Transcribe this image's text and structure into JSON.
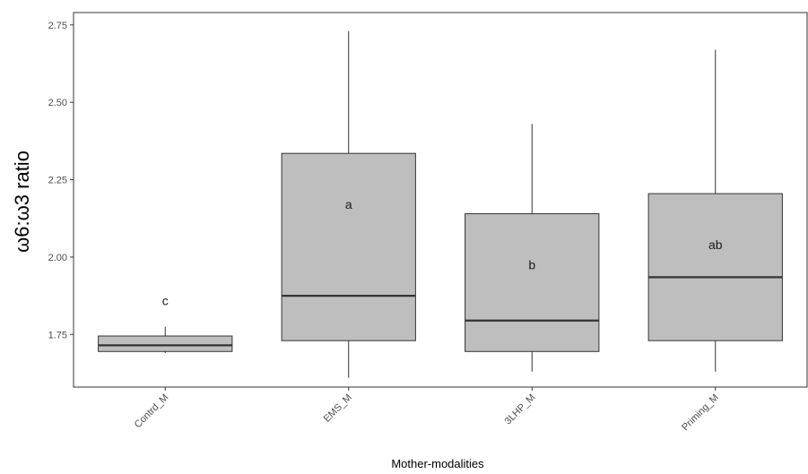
{
  "chart_data": {
    "type": "boxplot",
    "xlabel": "Mother-modalities",
    "ylabel": "ω6:ω3 ratio",
    "ylim": [
      1.58,
      2.79
    ],
    "yticks": [
      1.75,
      2.0,
      2.25,
      2.5,
      2.75
    ],
    "ytick_labels": [
      "1.75",
      "2.00",
      "2.25",
      "2.50",
      "2.75"
    ],
    "grid": false,
    "colors": {
      "box_fill": "#bebebe",
      "box_stroke": "#333333",
      "panel_border": "#333333"
    },
    "boxes": [
      {
        "category": "Contrd_M",
        "min": 1.69,
        "q1": 1.695,
        "median": 1.715,
        "q3": 1.745,
        "max": 1.775,
        "letter": "c"
      },
      {
        "category": "EMS_M",
        "min": 1.61,
        "q1": 1.73,
        "median": 1.875,
        "q3": 2.335,
        "max": 2.73,
        "letter": "a"
      },
      {
        "category": "3LHP_M",
        "min": 1.63,
        "q1": 1.695,
        "median": 1.795,
        "q3": 2.14,
        "max": 2.43,
        "letter": "b"
      },
      {
        "category": "Priming_M",
        "min": 1.63,
        "q1": 1.73,
        "median": 1.935,
        "q3": 2.205,
        "max": 2.67,
        "letter": "ab"
      }
    ]
  }
}
